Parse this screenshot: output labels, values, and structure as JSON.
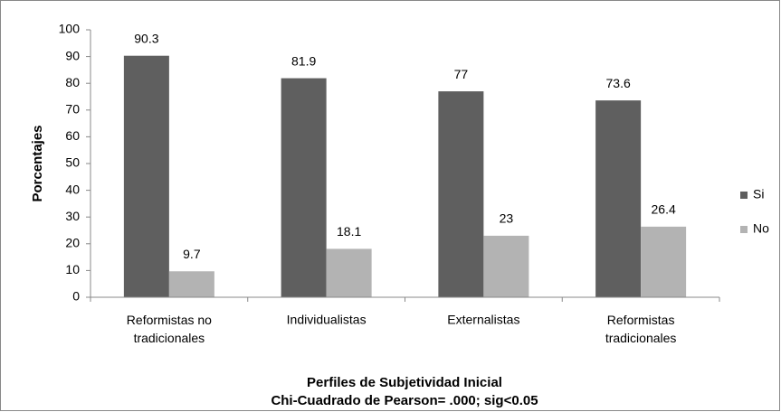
{
  "chart_data": {
    "type": "bar",
    "y_label": "Porcentajes",
    "x_label": "Perfiles de Subjetividad Inicial",
    "note": "Chi-Cuadrado  de Pearson= .000; sig<0.05",
    "categories": [
      "Reformistas no tradicionales",
      "Individualistas",
      "Externalistas",
      "Reformistas tradicionales"
    ],
    "series": [
      {
        "name": "Si",
        "color": "#5f5f5f",
        "values": [
          90.3,
          81.9,
          77,
          73.6
        ]
      },
      {
        "name": "No",
        "color": "#b3b3b3",
        "values": [
          9.7,
          18.1,
          23,
          26.4
        ]
      }
    ],
    "ylim": [
      0,
      100
    ],
    "yticks": [
      0,
      10,
      20,
      30,
      40,
      50,
      60,
      70,
      80,
      90,
      100
    ],
    "legend": "right"
  }
}
